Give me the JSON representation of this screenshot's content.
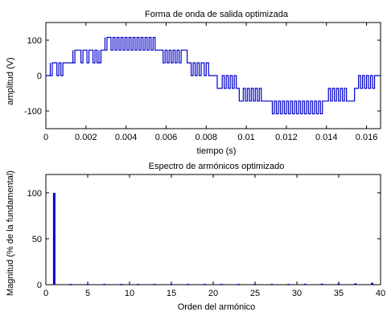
{
  "chart_data": [
    {
      "type": "line",
      "title": "Forma de onda de salida optimizada",
      "xlabel": "tiempo (s)",
      "ylabel": "amplitud (V)",
      "xlim": [
        0,
        0.0167
      ],
      "ylim": [
        -150,
        150
      ],
      "xticks": [
        0,
        0.002,
        0.004,
        0.006,
        0.008,
        0.01,
        0.012,
        0.014,
        0.016
      ],
      "xtick_labels": [
        "0",
        "0.002",
        "0.004",
        "0.006",
        "0.008",
        "0.01",
        "0.012",
        "0.014",
        "0.016"
      ],
      "yticks": [
        -100,
        0,
        100
      ],
      "ytick_labels": [
        "-100",
        "0",
        "100"
      ],
      "grid": false,
      "color": "#0000cc",
      "series": [
        {
          "levels": [
            0,
            36,
            72,
            108
          ],
          "segments": [
            {
              "t0": 0.0,
              "t1": 0.00022,
              "level": 0
            },
            {
              "t0": 0.00022,
              "t1": 0.00135,
              "level": 36,
              "notches": [
                0.00022,
                0.00055,
                0.00075
              ]
            },
            {
              "t0": 0.00135,
              "t1": 0.00295,
              "level": 72,
              "notches": [
                0.00135,
                0.00175,
                0.00205,
                0.00235,
                0.00255,
                0.00265
              ]
            },
            {
              "t0": 0.00295,
              "t1": 0.00545,
              "level": 108,
              "notches": [
                0.00295,
                0.00325,
                0.00345,
                0.00365,
                0.00385,
                0.00405,
                0.00425,
                0.00445,
                0.00465,
                0.00485,
                0.00505,
                0.00525
              ]
            },
            {
              "t0": 0.00545,
              "t1": 0.00705,
              "level": 72,
              "notches": [
                0.00585,
                0.00605,
                0.00625,
                0.00645,
                0.00665
              ]
            },
            {
              "t0": 0.00705,
              "t1": 0.00812,
              "level": 36,
              "notches": [
                0.00725,
                0.00745,
                0.00765,
                0.0079
              ]
            },
            {
              "t0": 0.00812,
              "t1": 0.00855,
              "level": 0
            },
            {
              "t0": 0.00855,
              "t1": 0.00965,
              "level": -36,
              "notches": [
                0.0088,
                0.009,
                0.0092,
                0.0094
              ]
            },
            {
              "t0": 0.00965,
              "t1": 0.0113,
              "level": -72,
              "notches": [
                0.00985,
                0.01005,
                0.01025,
                0.01045,
                0.01065
              ]
            },
            {
              "t0": 0.0113,
              "t1": 0.0138,
              "level": -108,
              "notches": [
                0.0114,
                0.0116,
                0.0118,
                0.012,
                0.0122,
                0.0124,
                0.0126,
                0.0128,
                0.013,
                0.0132,
                0.0134,
                0.0136
              ]
            },
            {
              "t0": 0.0138,
              "t1": 0.0154,
              "level": -72,
              "notches": [
                0.0141,
                0.0143,
                0.0145,
                0.0147,
                0.0149
              ]
            },
            {
              "t0": 0.0154,
              "t1": 0.0164,
              "level": -36,
              "notches": [
                0.0156,
                0.0158,
                0.016,
                0.0162
              ]
            },
            {
              "t0": 0.0164,
              "t1": 0.0167,
              "level": 0
            }
          ]
        }
      ]
    },
    {
      "type": "bar",
      "title": "Espectro de armónicos optimizado",
      "xlabel": "Orden del armónico",
      "ylabel": "Magnitud (% de la fundamental)",
      "xlim": [
        0,
        40
      ],
      "ylim": [
        0,
        120
      ],
      "xticks": [
        0,
        5,
        10,
        15,
        20,
        25,
        30,
        35,
        40
      ],
      "xtick_labels": [
        "0",
        "5",
        "10",
        "15",
        "20",
        "25",
        "30",
        "35",
        "40"
      ],
      "yticks": [
        0,
        50,
        100
      ],
      "ytick_labels": [
        "0",
        "50",
        "100"
      ],
      "grid": false,
      "color": "#0000cc",
      "categories": [
        1,
        3,
        5,
        7,
        9,
        11,
        13,
        15,
        17,
        19,
        21,
        23,
        25,
        27,
        29,
        31,
        33,
        35,
        37,
        39
      ],
      "values": [
        100,
        0.3,
        0.3,
        0.4,
        0.3,
        0.4,
        0.3,
        0.4,
        0.3,
        0.4,
        0.5,
        0.4,
        0.5,
        0.6,
        0.7,
        1.0,
        1.1,
        1.2,
        1.4,
        2.0
      ]
    }
  ]
}
